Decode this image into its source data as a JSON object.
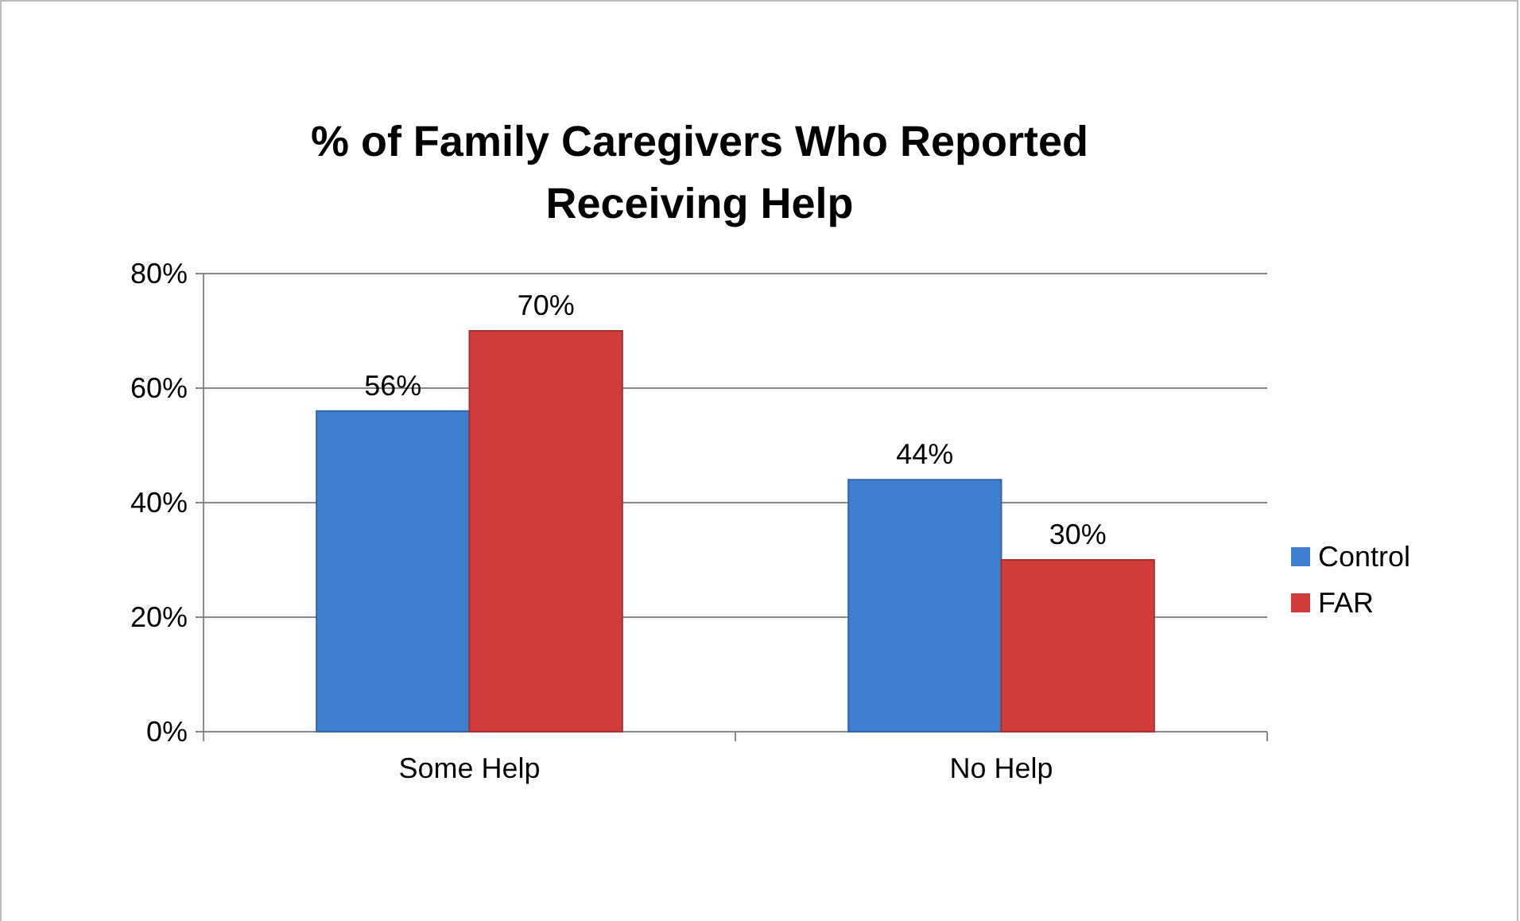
{
  "chart_data": {
    "type": "bar",
    "title": "% of Family Caregivers Who Reported Receiving Help",
    "categories": [
      "Some Help",
      "No Help"
    ],
    "series": [
      {
        "name": "Control",
        "color": "#3f7fd0",
        "values": [
          56,
          44
        ],
        "value_labels": [
          "56%",
          "44%"
        ]
      },
      {
        "name": "FAR",
        "color": "#d23c3c",
        "values": [
          70,
          30
        ],
        "value_labels": [
          "70%",
          "30%"
        ]
      }
    ],
    "ylim": [
      0,
      80
    ],
    "yticks": [
      {
        "value": 0,
        "label": "0%"
      },
      {
        "value": 20,
        "label": "20%"
      },
      {
        "value": 40,
        "label": "40%"
      },
      {
        "value": 60,
        "label": "60%"
      },
      {
        "value": 80,
        "label": "80%"
      }
    ],
    "grid": "y",
    "legend": "right"
  }
}
